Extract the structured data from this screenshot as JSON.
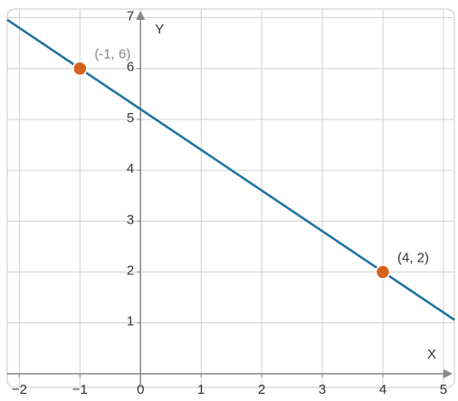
{
  "chart_data": {
    "type": "line",
    "x_label": "X",
    "y_label": "Y",
    "xlim": [
      -2.2,
      5.18
    ],
    "ylim": [
      -0.27,
      7.17
    ],
    "xticks": [
      {
        "value": -2,
        "label": "−2"
      },
      {
        "value": -1,
        "label": "−1"
      },
      0,
      1,
      2,
      3,
      4,
      5
    ],
    "yticks": [
      1,
      2,
      3,
      4,
      5,
      6,
      7
    ],
    "grid": true,
    "line": {
      "x": [
        -2.2,
        5.18
      ],
      "y": [
        6.96,
        1.06
      ],
      "color": "#1f73a0"
    },
    "points": {
      "x": [
        -1,
        4
      ],
      "y": [
        6,
        2
      ],
      "labels": [
        "(-1, 6)",
        "(4, 2)"
      ],
      "color": "#d5621c"
    }
  }
}
